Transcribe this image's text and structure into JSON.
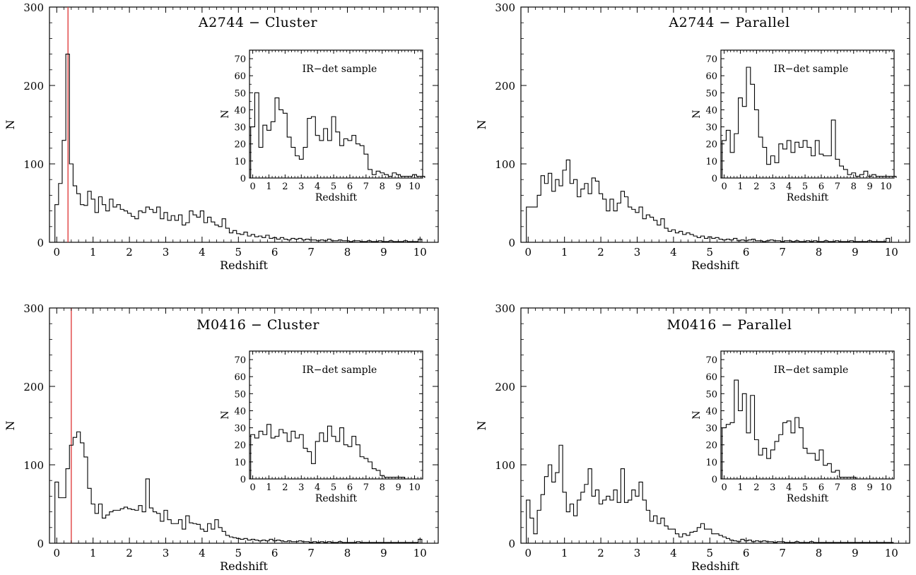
{
  "chart_data": [
    {
      "type": "histogram",
      "title": "A2744 − Cluster",
      "xlabel": "Redshift",
      "ylabel": "N",
      "xlim": [
        -0.2,
        10.5
      ],
      "ylim": [
        0,
        300
      ],
      "xticks": [
        0,
        1,
        2,
        3,
        4,
        5,
        6,
        7,
        8,
        9,
        10
      ],
      "yticks": [
        0,
        100,
        200,
        300
      ],
      "bin_width": 0.1,
      "bin_start": -0.05,
      "values": [
        48,
        75,
        130,
        240,
        100,
        72,
        62,
        48,
        47,
        65,
        55,
        38,
        58,
        48,
        40,
        55,
        45,
        48,
        42,
        40,
        37,
        33,
        30,
        40,
        38,
        45,
        42,
        38,
        45,
        30,
        38,
        28,
        34,
        28,
        35,
        22,
        25,
        40,
        35,
        32,
        40,
        25,
        32,
        26,
        22,
        20,
        30,
        18,
        12,
        15,
        11,
        10,
        13,
        8,
        10,
        7,
        8,
        6,
        9,
        5,
        6,
        4,
        6,
        4,
        3,
        5,
        4,
        5,
        3,
        4,
        3,
        3,
        2,
        3,
        2,
        4,
        2,
        2,
        3,
        2,
        2,
        1,
        2,
        2,
        1,
        1,
        2,
        1,
        1,
        2,
        1,
        1,
        2,
        1,
        1,
        1,
        2,
        1,
        1,
        1,
        4
      ],
      "reference_line": {
        "x": 0.31,
        "color": "#e04040"
      },
      "inset": {
        "title": "IR−det sample",
        "xlabel": "Redshift",
        "ylabel": "N",
        "xlim": [
          -0.2,
          10.5
        ],
        "ylim": [
          0,
          75
        ],
        "xticks": [
          0,
          1,
          2,
          3,
          4,
          5,
          6,
          7,
          8,
          9,
          10
        ],
        "yticks": [
          0,
          10,
          20,
          30,
          40,
          50,
          60,
          70
        ],
        "bin_width": 0.25,
        "bin_start": -0.125,
        "values": [
          30,
          50,
          18,
          31,
          28,
          33,
          47,
          40,
          38,
          24,
          18,
          13,
          11,
          18,
          35,
          36,
          25,
          22,
          29,
          22,
          36,
          27,
          19,
          23,
          22,
          25,
          20,
          19,
          14,
          5,
          2,
          4,
          3,
          2,
          1,
          3,
          2,
          1,
          1,
          1,
          2,
          1,
          1
        ]
      }
    },
    {
      "type": "histogram",
      "title": "A2744 − Parallel",
      "xlabel": "Redshift",
      "ylabel": "N",
      "xlim": [
        -0.2,
        10.5
      ],
      "ylim": [
        0,
        300
      ],
      "xticks": [
        0,
        1,
        2,
        3,
        4,
        5,
        6,
        7,
        8,
        9,
        10
      ],
      "yticks": [
        0,
        100,
        200,
        300
      ],
      "bin_width": 0.1,
      "bin_start": -0.05,
      "values": [
        45,
        45,
        45,
        60,
        85,
        75,
        88,
        65,
        80,
        72,
        92,
        105,
        75,
        80,
        58,
        68,
        75,
        62,
        82,
        78,
        62,
        55,
        40,
        55,
        40,
        50,
        65,
        58,
        45,
        42,
        38,
        45,
        30,
        35,
        32,
        28,
        22,
        30,
        18,
        14,
        16,
        12,
        14,
        10,
        12,
        10,
        8,
        6,
        8,
        5,
        7,
        5,
        6,
        4,
        3,
        4,
        3,
        5,
        2,
        3,
        2,
        3,
        4,
        2,
        2,
        1,
        2,
        3,
        2,
        2,
        1,
        2,
        2,
        1,
        2,
        1,
        1,
        2,
        1,
        2,
        1,
        1,
        2,
        1,
        1,
        2,
        1,
        1,
        1,
        2,
        1,
        1,
        1,
        1,
        2,
        1,
        1,
        1,
        1,
        5
      ],
      "inset": {
        "title": "IR−det sample",
        "xlabel": "Redshift",
        "ylabel": "N",
        "xlim": [
          -0.2,
          10.5
        ],
        "ylim": [
          0,
          75
        ],
        "xticks": [
          0,
          1,
          2,
          3,
          4,
          5,
          6,
          7,
          8,
          9,
          10
        ],
        "yticks": [
          0,
          10,
          20,
          30,
          40,
          50,
          60,
          70
        ],
        "bin_width": 0.25,
        "bin_start": -0.125,
        "values": [
          22,
          28,
          15,
          26,
          47,
          42,
          65,
          55,
          40,
          24,
          18,
          8,
          13,
          9,
          20,
          17,
          22,
          15,
          21,
          18,
          22,
          18,
          13,
          22,
          14,
          13,
          13,
          34,
          11,
          7,
          5,
          2,
          3,
          1,
          2,
          4,
          1,
          2,
          1,
          1,
          1,
          1,
          1
        ]
      }
    },
    {
      "type": "histogram",
      "title": "M0416 − Cluster",
      "xlabel": "Redshift",
      "ylabel": "N",
      "xlim": [
        -0.2,
        10.5
      ],
      "ylim": [
        0,
        300
      ],
      "xticks": [
        0,
        1,
        2,
        3,
        4,
        5,
        6,
        7,
        8,
        9,
        10
      ],
      "yticks": [
        0,
        100,
        200,
        300
      ],
      "bin_width": 0.1,
      "bin_start": -0.05,
      "values": [
        78,
        58,
        58,
        95,
        125,
        135,
        142,
        128,
        110,
        70,
        50,
        38,
        50,
        32,
        36,
        40,
        42,
        42,
        44,
        46,
        44,
        43,
        42,
        48,
        40,
        82,
        45,
        40,
        38,
        28,
        42,
        30,
        25,
        25,
        30,
        18,
        35,
        26,
        25,
        24,
        18,
        15,
        25,
        18,
        30,
        20,
        15,
        10,
        8,
        7,
        6,
        5,
        6,
        4,
        5,
        4,
        3,
        4,
        3,
        5,
        3,
        4,
        3,
        2,
        3,
        2,
        2,
        3,
        2,
        2,
        1,
        2,
        1,
        2,
        1,
        2,
        1,
        1,
        2,
        1,
        1,
        1,
        1,
        2,
        1,
        1,
        1,
        1,
        1,
        1,
        1,
        1,
        1,
        1,
        1,
        1,
        1,
        1,
        1,
        1,
        5
      ],
      "reference_line": {
        "x": 0.4,
        "color": "#e04040"
      },
      "inset": {
        "title": "IR−det sample",
        "xlabel": "Redshift",
        "ylabel": "N",
        "xlim": [
          -0.2,
          10.5
        ],
        "ylim": [
          0,
          75
        ],
        "xticks": [
          0,
          1,
          2,
          3,
          4,
          5,
          6,
          7,
          8,
          9,
          10
        ],
        "yticks": [
          0,
          10,
          20,
          30,
          40,
          50,
          60,
          70
        ],
        "bin_width": 0.25,
        "bin_start": -0.125,
        "values": [
          26,
          24,
          28,
          26,
          32,
          24,
          25,
          29,
          27,
          22,
          28,
          24,
          26,
          18,
          16,
          9,
          22,
          27,
          22,
          31,
          25,
          22,
          30,
          20,
          19,
          25,
          20,
          13,
          12,
          10,
          6,
          5,
          2,
          1,
          1,
          1,
          1,
          1
        ]
      }
    },
    {
      "type": "histogram",
      "title": "M0416 − Parallel",
      "xlabel": "Redshift",
      "ylabel": "N",
      "xlim": [
        -0.2,
        10.5
      ],
      "ylim": [
        0,
        300
      ],
      "xticks": [
        0,
        1,
        2,
        3,
        4,
        5,
        6,
        7,
        8,
        9,
        10
      ],
      "yticks": [
        0,
        100,
        200,
        300
      ],
      "bin_width": 0.1,
      "bin_start": -0.05,
      "values": [
        55,
        32,
        12,
        42,
        62,
        85,
        100,
        78,
        90,
        125,
        65,
        40,
        50,
        35,
        55,
        65,
        75,
        95,
        60,
        68,
        50,
        55,
        60,
        55,
        68,
        52,
        95,
        52,
        55,
        68,
        60,
        78,
        55,
        42,
        28,
        35,
        25,
        32,
        22,
        18,
        18,
        12,
        8,
        12,
        10,
        14,
        15,
        20,
        25,
        18,
        18,
        12,
        12,
        10,
        8,
        6,
        4,
        3,
        2,
        5,
        3,
        4,
        2,
        3,
        2,
        3,
        2,
        2,
        1,
        2,
        2,
        1,
        1,
        1,
        2,
        1,
        1,
        1,
        2,
        1,
        1,
        1,
        1,
        1,
        1,
        1,
        1,
        1,
        1,
        1,
        1,
        1,
        1,
        1,
        1,
        1,
        1,
        1,
        1,
        1,
        1
      ],
      "inset": {
        "title": "IR−det sample",
        "xlabel": "Redshift",
        "ylabel": "N",
        "xlim": [
          -0.2,
          10.5
        ],
        "ylim": [
          0,
          75
        ],
        "xticks": [
          0,
          1,
          2,
          3,
          4,
          5,
          6,
          7,
          8,
          9,
          10
        ],
        "yticks": [
          0,
          10,
          20,
          30,
          40,
          50,
          60,
          70
        ],
        "bin_width": 0.25,
        "bin_start": -0.125,
        "values": [
          30,
          32,
          33,
          58,
          40,
          50,
          27,
          49,
          23,
          14,
          18,
          12,
          17,
          22,
          26,
          33,
          34,
          27,
          36,
          30,
          18,
          15,
          15,
          11,
          17,
          8,
          9,
          4,
          5,
          1,
          1,
          1,
          1
        ]
      }
    }
  ]
}
